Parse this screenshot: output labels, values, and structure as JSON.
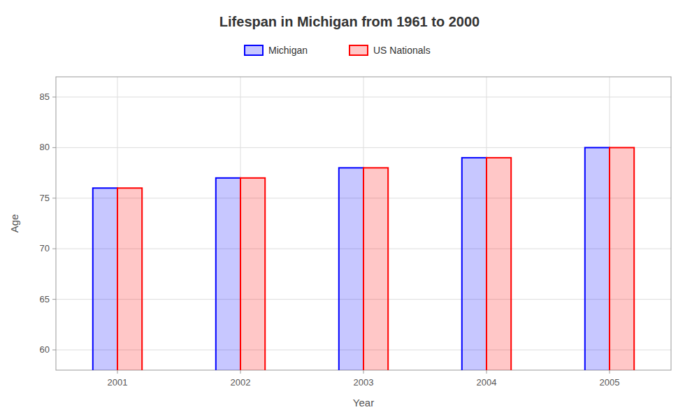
{
  "chart_data": {
    "type": "bar",
    "title": "Lifespan in Michigan from 1961 to 2000",
    "x_label": "Year",
    "y_label": "Age",
    "categories": [
      "2001",
      "2002",
      "2003",
      "2004",
      "2005"
    ],
    "series": [
      {
        "name": "Michigan",
        "color": "#0000ff",
        "values": [
          76,
          77,
          78,
          79,
          80
        ]
      },
      {
        "name": "US Nationals",
        "color": "#ff0000",
        "values": [
          76,
          77,
          78,
          79,
          80
        ]
      }
    ],
    "ylim": [
      58,
      87
    ],
    "yticks": [
      60,
      65,
      70,
      75,
      80,
      85
    ],
    "grid": true,
    "legend": "top"
  }
}
